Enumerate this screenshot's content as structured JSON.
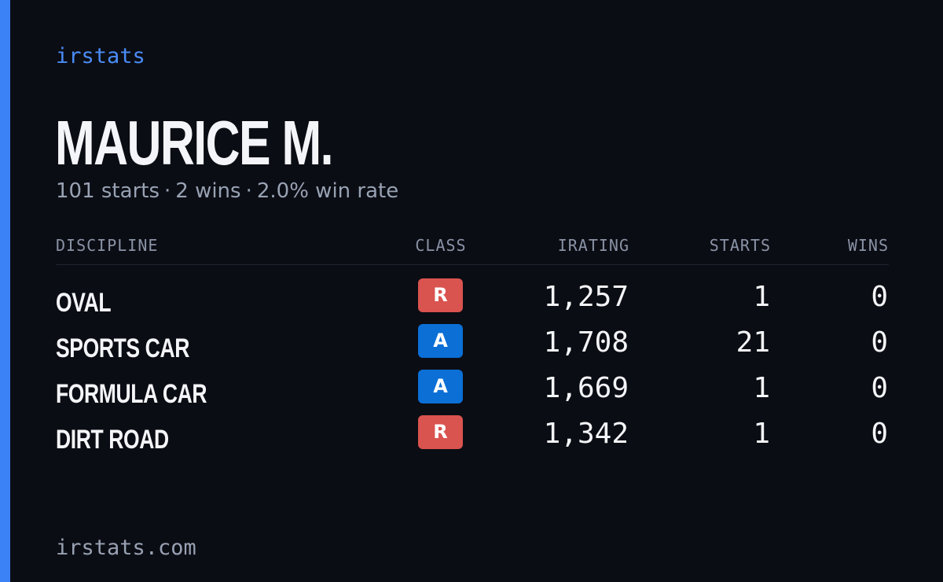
{
  "brand": "irstats",
  "colors": {
    "accent": "#3b82f6",
    "background": "#0b0d14",
    "class_R": "#d9534f",
    "class_A": "#0b6fd6"
  },
  "driver": {
    "name": "MAURICE M.",
    "starts_text": "101 starts",
    "wins_text": "2 wins",
    "win_rate_text": "2.0% win rate",
    "separator": "·"
  },
  "table": {
    "headers": {
      "discipline": "DISCIPLINE",
      "class": "CLASS",
      "irating": "IRATING",
      "starts": "STARTS",
      "wins": "WINS"
    },
    "rows": [
      {
        "discipline": "OVAL",
        "class": "R",
        "irating": "1,257",
        "starts": "1",
        "wins": "0"
      },
      {
        "discipline": "SPORTS CAR",
        "class": "A",
        "irating": "1,708",
        "starts": "21",
        "wins": "0"
      },
      {
        "discipline": "FORMULA CAR",
        "class": "A",
        "irating": "1,669",
        "starts": "1",
        "wins": "0"
      },
      {
        "discipline": "DIRT ROAD",
        "class": "R",
        "irating": "1,342",
        "starts": "1",
        "wins": "0"
      }
    ]
  },
  "footer": {
    "url": "irstats.com"
  }
}
